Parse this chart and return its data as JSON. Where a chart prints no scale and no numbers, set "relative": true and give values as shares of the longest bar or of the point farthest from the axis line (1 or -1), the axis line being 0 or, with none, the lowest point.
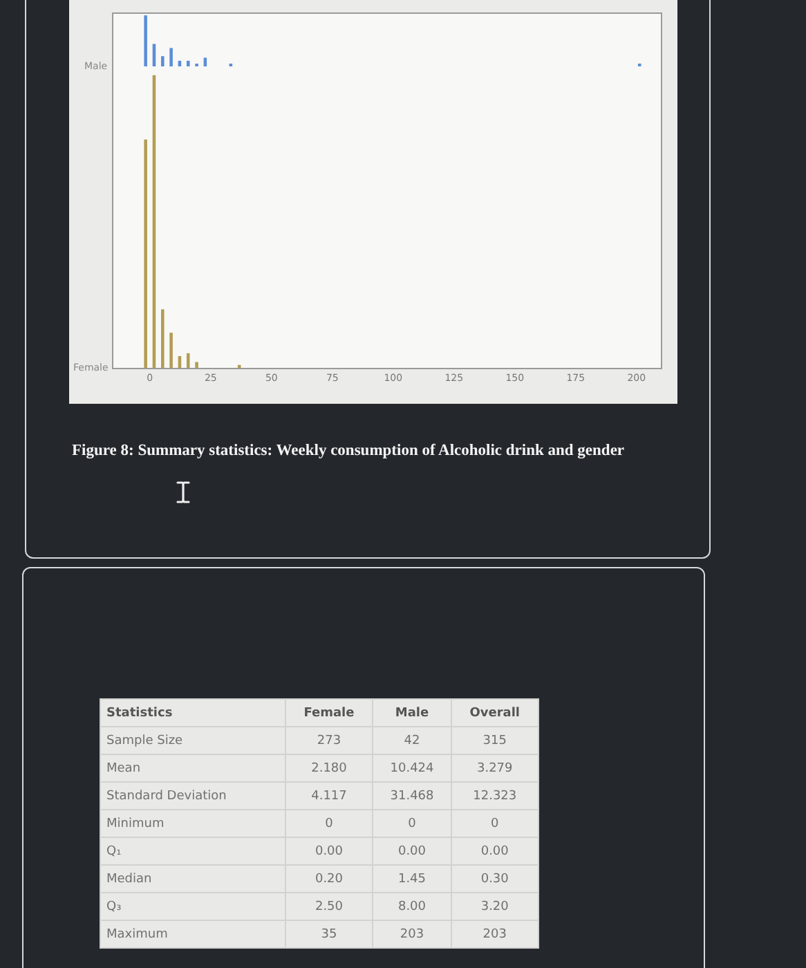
{
  "chart_data": [
    {
      "type": "bar",
      "ylabel": "Male",
      "relative": true,
      "color": "#5b8ed6",
      "xlim": [
        -15,
        210
      ],
      "tick_labels": false,
      "x": [
        -1.75,
        1.75,
        5.25,
        8.75,
        12.25,
        15.75,
        19.25,
        22.75,
        33.25,
        201.25
      ],
      "values": [
        1,
        0.44,
        0.2,
        0.36,
        0.11,
        0.11,
        0.05,
        0.17,
        0.05,
        0.05
      ]
    },
    {
      "type": "bar",
      "ylabel": "Female",
      "relative": true,
      "color": "#b39d52",
      "xlim": [
        -15,
        210
      ],
      "xticks": [
        0,
        25,
        50,
        75,
        100,
        125,
        150,
        175,
        200
      ],
      "tick_labels": "x",
      "x": [
        -1.75,
        1.75,
        5.25,
        8.75,
        12.25,
        15.75,
        19.25,
        36.75
      ],
      "values": [
        0.78,
        1,
        0.2,
        0.12,
        0.04,
        0.05,
        0.02,
        0.01
      ],
      "annotations": [
        "Figure 8: Summary statistics: Weekly consumption of Alcoholic drink and gender"
      ]
    },
    {
      "type": "other",
      "ylabel": "Statistics",
      "categories": [
        "Sample Size",
        "Mean",
        "Standard Deviation",
        "Minimum",
        "Q₁",
        "Median",
        "Q₃",
        "Maximum"
      ],
      "series": [
        {
          "name": "Female",
          "values": [
            273,
            2.18,
            4.117,
            0,
            0,
            0.2,
            2.5,
            35
          ],
          "value_labels": [
            "273",
            "2.180",
            "4.117",
            "0",
            "0.00",
            "0.20",
            "2.50",
            "35"
          ]
        },
        {
          "name": "Male",
          "values": [
            42,
            10.424,
            31.468,
            0,
            0,
            1.45,
            8,
            203
          ],
          "value_labels": [
            "42",
            "10.424",
            "31.468",
            "0",
            "0.00",
            "1.45",
            "8.00",
            "203"
          ]
        },
        {
          "name": "Overall",
          "values": [
            315,
            3.279,
            12.323,
            0,
            0,
            0.3,
            3.2,
            203
          ],
          "value_labels": [
            "315",
            "3.279",
            "12.323",
            "0",
            "0.00",
            "0.30",
            "3.20",
            "203"
          ]
        }
      ]
    }
  ]
}
